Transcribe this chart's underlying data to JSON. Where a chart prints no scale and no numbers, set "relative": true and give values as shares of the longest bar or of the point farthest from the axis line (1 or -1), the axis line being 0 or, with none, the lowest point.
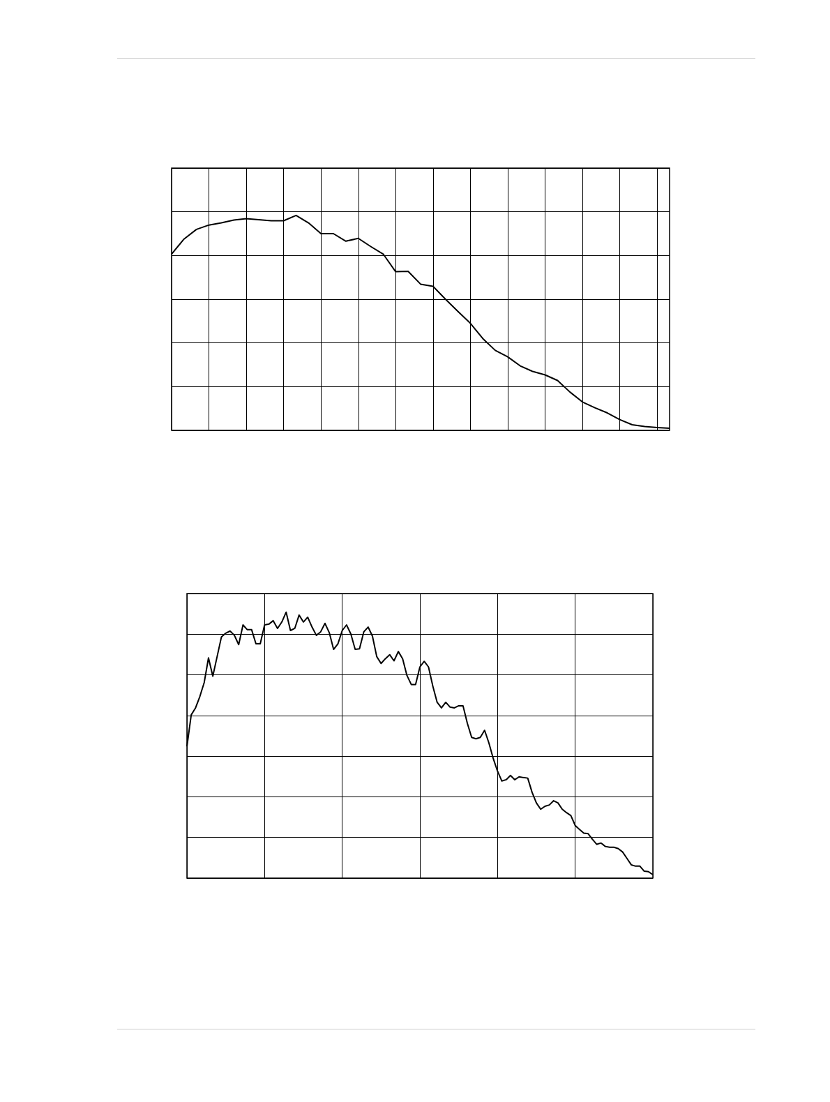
{
  "chart_data": [
    {
      "type": "line",
      "relative": true,
      "grid": true,
      "color": "#000000",
      "categories": [
        null,
        null,
        null,
        null,
        null,
        null,
        null,
        null,
        null,
        null,
        null,
        null,
        null,
        null,
        null,
        null,
        null,
        null,
        null,
        null,
        null,
        null,
        null,
        null,
        null,
        null,
        null,
        null,
        null,
        null,
        null,
        null,
        null,
        null,
        null,
        null,
        null,
        null,
        null,
        null,
        null
      ],
      "values": [
        0.82,
        0.89,
        0.935,
        0.955,
        0.965,
        0.978,
        0.985,
        0.98,
        0.975,
        0.975,
        1.0,
        0.965,
        0.915,
        0.915,
        0.88,
        0.893,
        0.855,
        0.82,
        0.738,
        0.74,
        0.68,
        0.67,
        0.61,
        0.553,
        0.498,
        0.427,
        0.372,
        0.342,
        0.3,
        0.274,
        0.258,
        0.232,
        0.178,
        0.132,
        0.105,
        0.081,
        0.05,
        0.026,
        0.018,
        0.013,
        0.01
      ]
    },
    {
      "type": "line",
      "relative": true,
      "grid": true,
      "color": "#000000",
      "categories": [
        null,
        null,
        null,
        null,
        null,
        null,
        null,
        null,
        null,
        null,
        null,
        null,
        null,
        null,
        null,
        null,
        null,
        null,
        null,
        null,
        null,
        null,
        null,
        null,
        null,
        null,
        null,
        null,
        null,
        null,
        null,
        null,
        null,
        null,
        null,
        null,
        null,
        null,
        null,
        null,
        null,
        null,
        null,
        null,
        null,
        null,
        null,
        null,
        null,
        null,
        null,
        null,
        null,
        null,
        null,
        null,
        null,
        null,
        null,
        null,
        null,
        null,
        null,
        null,
        null,
        null,
        null,
        null,
        null,
        null,
        null,
        null,
        null,
        null,
        null,
        null,
        null,
        null,
        null,
        null,
        null,
        null,
        null,
        null,
        null,
        null,
        null,
        null,
        null,
        null,
        null,
        null,
        null,
        null,
        null,
        null,
        null,
        null,
        null,
        null,
        null,
        null,
        null,
        null,
        null,
        null,
        null,
        null,
        null
      ],
      "values": [
        0.495,
        0.614,
        0.64,
        0.683,
        0.735,
        0.828,
        0.759,
        0.833,
        0.907,
        0.921,
        0.929,
        0.913,
        0.878,
        0.952,
        0.934,
        0.934,
        0.881,
        0.881,
        0.952,
        0.955,
        0.968,
        0.939,
        0.963,
        1.0,
        0.931,
        0.939,
        0.989,
        0.963,
        0.981,
        0.944,
        0.913,
        0.926,
        0.958,
        0.923,
        0.86,
        0.881,
        0.931,
        0.952,
        0.918,
        0.86,
        0.862,
        0.926,
        0.944,
        0.91,
        0.833,
        0.807,
        0.825,
        0.84,
        0.817,
        0.852,
        0.825,
        0.762,
        0.728,
        0.728,
        0.794,
        0.815,
        0.794,
        0.722,
        0.661,
        0.64,
        0.661,
        0.643,
        0.64,
        0.648,
        0.648,
        0.582,
        0.529,
        0.524,
        0.529,
        0.556,
        0.508,
        0.45,
        0.402,
        0.365,
        0.37,
        0.386,
        0.37,
        0.381,
        0.378,
        0.376,
        0.323,
        0.283,
        0.259,
        0.27,
        0.275,
        0.291,
        0.283,
        0.259,
        0.246,
        0.235,
        0.198,
        0.183,
        0.169,
        0.167,
        0.146,
        0.127,
        0.132,
        0.119,
        0.116,
        0.116,
        0.111,
        0.098,
        0.074,
        0.05,
        0.045,
        0.045,
        0.026,
        0.024,
        0.013
      ]
    }
  ]
}
